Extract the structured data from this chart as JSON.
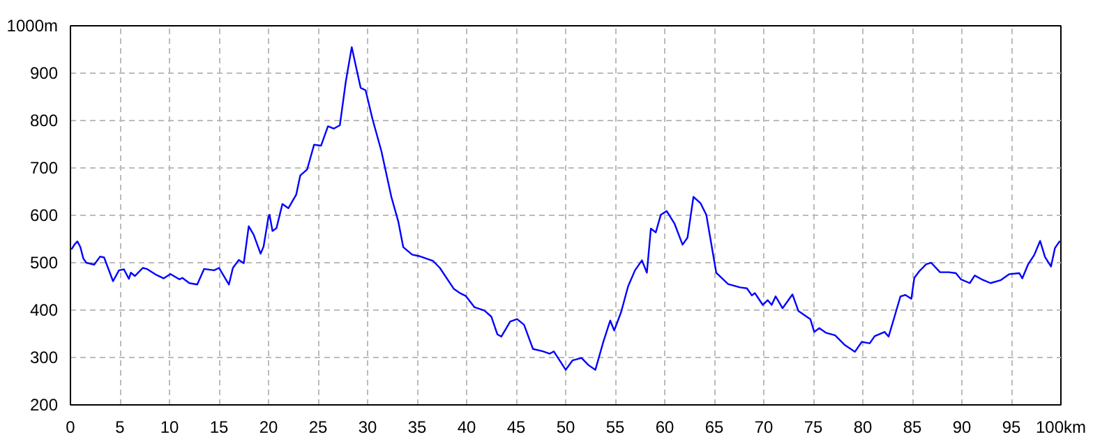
{
  "chart_data": {
    "type": "line",
    "xlim": [
      0,
      100
    ],
    "ylim": [
      200,
      1000
    ],
    "xticks": [
      0,
      5,
      10,
      15,
      20,
      25,
      30,
      35,
      40,
      45,
      50,
      55,
      60,
      65,
      70,
      75,
      80,
      85,
      90,
      95,
      {
        "value": 100,
        "label": "100km"
      }
    ],
    "yticks": [
      200,
      300,
      400,
      500,
      600,
      700,
      800,
      900,
      {
        "value": 1000,
        "label": "1000m"
      }
    ],
    "grid": true,
    "line_style": "solid",
    "series": [
      {
        "color": "#0000ff",
        "x": [
          0.1,
          0.4,
          0.7,
          1.0,
          1.3,
          1.6,
          2.4,
          3.0,
          3.4,
          4.3,
          4.9,
          5.4,
          5.9,
          6.1,
          6.5,
          7.3,
          7.7,
          8.7,
          9.4,
          10.1,
          11.0,
          11.3,
          12.0,
          12.8,
          13.5,
          14.5,
          15.0,
          16.0,
          16.4,
          17.0,
          17.5,
          18.0,
          18.5,
          19.2,
          19.5,
          20.0,
          20.1,
          20.4,
          20.8,
          21.4,
          22.0,
          22.8,
          23.2,
          23.9,
          24.6,
          25.3,
          26.0,
          26.6,
          27.2,
          27.8,
          28.4,
          29.3,
          29.8,
          30.5,
          31.4,
          32.4,
          33.1,
          33.6,
          34.5,
          35.2,
          36.6,
          37.3,
          38.7,
          39.4,
          39.9,
          40.8,
          41.8,
          42.5,
          43.1,
          43.5,
          44.4,
          45.1,
          45.8,
          46.7,
          47.7,
          48.4,
          48.8,
          50.0,
          50.7,
          51.6,
          52.3,
          53.0,
          53.8,
          54.5,
          54.9,
          55.6,
          56.3,
          57.0,
          57.7,
          58.2,
          58.6,
          59.1,
          59.6,
          60.2,
          61.0,
          61.8,
          62.3,
          62.9,
          63.6,
          64.2,
          65.2,
          66.4,
          67.6,
          68.3,
          68.8,
          69.1,
          69.9,
          70.4,
          70.8,
          71.2,
          71.9,
          72.9,
          73.5,
          74.7,
          75.1,
          75.6,
          76.3,
          77.2,
          78.2,
          79.2,
          79.9,
          80.7,
          81.2,
          82.2,
          82.6,
          83.2,
          83.8,
          84.3,
          84.9,
          85.2,
          85.7,
          86.4,
          86.9,
          87.8,
          88.7,
          89.4,
          89.9,
          90.8,
          91.3,
          92.0,
          92.9,
          93.9,
          94.8,
          95.8,
          96.1,
          96.7,
          97.3,
          97.9,
          98.4,
          99.0,
          99.4,
          99.9
        ],
        "values": [
          528,
          538,
          545,
          533,
          509,
          500,
          496,
          513,
          511,
          461,
          484,
          486,
          466,
          479,
          472,
          489,
          487,
          474,
          467,
          476,
          465,
          468,
          457,
          454,
          487,
          484,
          489,
          454,
          489,
          506,
          499,
          577,
          559,
          519,
          534,
          598,
          601,
          567,
          573,
          624,
          615,
          644,
          684,
          697,
          749,
          747,
          788,
          783,
          790,
          882,
          955,
          869,
          864,
          803,
          735,
          639,
          587,
          533,
          517,
          514,
          504,
          489,
          445,
          435,
          430,
          406,
          399,
          386,
          349,
          344,
          376,
          381,
          369,
          318,
          313,
          308,
          313,
          274,
          294,
          299,
          284,
          274,
          333,
          378,
          357,
          396,
          450,
          484,
          505,
          479,
          572,
          564,
          601,
          609,
          582,
          538,
          553,
          639,
          626,
          601,
          479,
          455,
          448,
          446,
          431,
          436,
          411,
          421,
          411,
          429,
          404,
          433,
          398,
          381,
          354,
          362,
          352,
          347,
          326,
          312,
          333,
          330,
          345,
          354,
          344,
          386,
          429,
          432,
          424,
          468,
          482,
          497,
          500,
          480,
          480,
          478,
          465,
          457,
          473,
          465,
          457,
          463,
          476,
          478,
          467,
          497,
          516,
          546,
          512,
          492,
          531,
          546
        ]
      }
    ]
  }
}
